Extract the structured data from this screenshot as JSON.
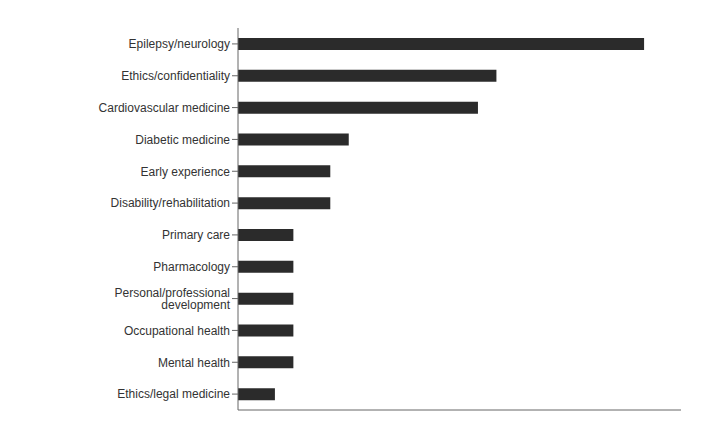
{
  "chart_data": {
    "type": "bar",
    "orientation": "horizontal",
    "categories": [
      "Epilepsy/neurology",
      "Ethics/confidentiality",
      "Cardiovascular medicine",
      "Diabetic medicine",
      "Early experience",
      "Disability/rehabilitation",
      "Primary care",
      "Pharmacology",
      "Personal/professional development",
      "Occupational health",
      "Mental health",
      "Ethics/legal medicine"
    ],
    "values": [
      22,
      14,
      13,
      6,
      5,
      5,
      3,
      3,
      3,
      3,
      3,
      2
    ],
    "color": "#2b2b2b",
    "xlim": [
      0,
      24
    ],
    "tick_labels": "y",
    "grid": false
  }
}
